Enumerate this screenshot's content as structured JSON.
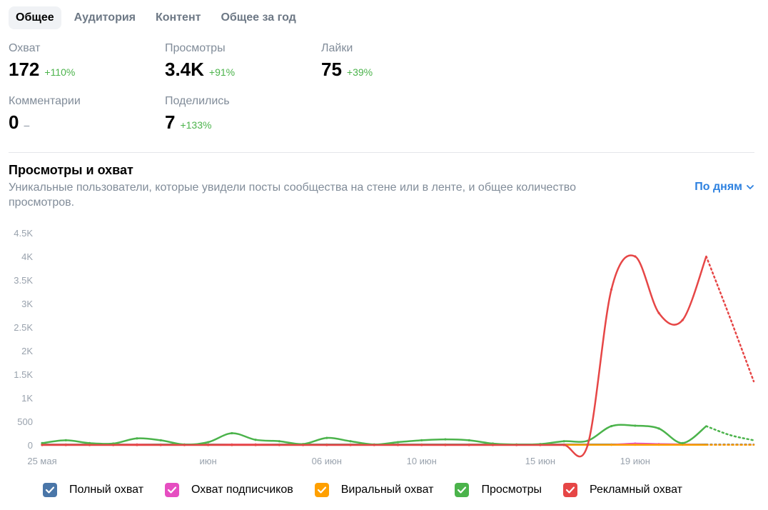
{
  "tabs": [
    {
      "label": "Общее",
      "active": true
    },
    {
      "label": "Аудитория",
      "active": false
    },
    {
      "label": "Контент",
      "active": false
    },
    {
      "label": "Общее за год",
      "active": false
    }
  ],
  "stats": {
    "reach": {
      "label": "Охват",
      "value": "172",
      "delta": "+110%"
    },
    "views": {
      "label": "Просмотры",
      "value": "3.4K",
      "delta": "+91%"
    },
    "likes": {
      "label": "Лайки",
      "value": "75",
      "delta": "+39%"
    },
    "comments": {
      "label": "Комментарии",
      "value": "0",
      "delta": "–"
    },
    "shares": {
      "label": "Поделились",
      "value": "7",
      "delta": "+133%"
    }
  },
  "chart_section": {
    "title": "Просмотры и охват",
    "subtitle": "Уникальные пользователи, которые увидели посты сообщества на стене или в ленте, и общее количество просмотров.",
    "period_label": "По дням",
    "period_icon": "chevron-down-icon"
  },
  "colors": {
    "full_reach": "#4a76a8",
    "subscriber_reach": "#e64ec1",
    "viral_reach": "#ffa000",
    "views": "#4bb34b",
    "ad_reach": "#e64646",
    "positive_delta": "#4bb34b",
    "link": "#2d81e0"
  },
  "legend": [
    {
      "label": "Полный охват",
      "color": "#4a76a8",
      "checked": true
    },
    {
      "label": "Охват подписчиков",
      "color": "#e64ec1",
      "checked": true
    },
    {
      "label": "Виральный охват",
      "color": "#ffa000",
      "checked": true
    },
    {
      "label": "Просмотры",
      "color": "#4bb34b",
      "checked": true
    },
    {
      "label": "Рекламный охват",
      "color": "#e64646",
      "checked": true
    }
  ],
  "chart_data": {
    "type": "line",
    "x_start_date": "25 мая",
    "x_tick_labels": [
      {
        "label": "25 мая",
        "day_index": 0
      },
      {
        "label": "июн",
        "day_index": 7
      },
      {
        "label": "06 июн",
        "day_index": 12
      },
      {
        "label": "10 июн",
        "day_index": 16
      },
      {
        "label": "15 июн",
        "day_index": 21
      },
      {
        "label": "19 июн",
        "day_index": 25
      }
    ],
    "y_ticks": [
      {
        "value": 0,
        "label": "0"
      },
      {
        "value": 500,
        "label": "500"
      },
      {
        "value": 1000,
        "label": "1K"
      },
      {
        "value": 1500,
        "label": "1.5K"
      },
      {
        "value": 2000,
        "label": "2K"
      },
      {
        "value": 2500,
        "label": "2.5K"
      },
      {
        "value": 3000,
        "label": "3K"
      },
      {
        "value": 3500,
        "label": "3.5K"
      },
      {
        "value": 4000,
        "label": "4K"
      },
      {
        "value": 4500,
        "label": "4.5K"
      }
    ],
    "ylim": [
      0,
      4500
    ],
    "grid": false,
    "legend_position": "bottom",
    "series": [
      {
        "name": "Полный охват",
        "color": "#4a76a8",
        "values": [
          10,
          10,
          10,
          10,
          10,
          10,
          10,
          10,
          10,
          10,
          10,
          10,
          10,
          10,
          10,
          10,
          10,
          10,
          10,
          10,
          10,
          10,
          10,
          10,
          10,
          15,
          15,
          10,
          10,
          10,
          10
        ]
      },
      {
        "name": "Охват подписчиков",
        "color": "#e64ec1",
        "values": [
          5,
          8,
          5,
          5,
          12,
          5,
          5,
          5,
          10,
          12,
          5,
          5,
          5,
          5,
          5,
          5,
          5,
          5,
          5,
          5,
          5,
          5,
          5,
          5,
          5,
          30,
          20,
          10,
          5,
          5,
          5
        ]
      },
      {
        "name": "Виральный охват",
        "color": "#ffa000",
        "values": [
          5,
          5,
          5,
          5,
          5,
          5,
          5,
          5,
          5,
          5,
          5,
          5,
          5,
          5,
          5,
          5,
          5,
          5,
          5,
          5,
          5,
          5,
          5,
          5,
          5,
          5,
          5,
          5,
          5,
          5,
          5
        ]
      },
      {
        "name": "Просмотры",
        "color": "#4bb34b",
        "values": [
          40,
          100,
          40,
          30,
          140,
          100,
          10,
          60,
          250,
          110,
          80,
          20,
          150,
          80,
          10,
          60,
          100,
          120,
          100,
          30,
          10,
          20,
          80,
          90,
          400,
          410,
          350,
          40,
          400,
          210,
          100
        ]
      },
      {
        "name": "Рекламный охват",
        "color": "#e64646",
        "values": [
          0,
          0,
          0,
          0,
          0,
          0,
          0,
          0,
          0,
          0,
          0,
          0,
          0,
          0,
          0,
          0,
          0,
          0,
          0,
          0,
          0,
          0,
          0,
          0,
          3300,
          4000,
          2800,
          2650,
          4000,
          2700,
          1350
        ]
      }
    ],
    "dashed_from_index": 28
  }
}
